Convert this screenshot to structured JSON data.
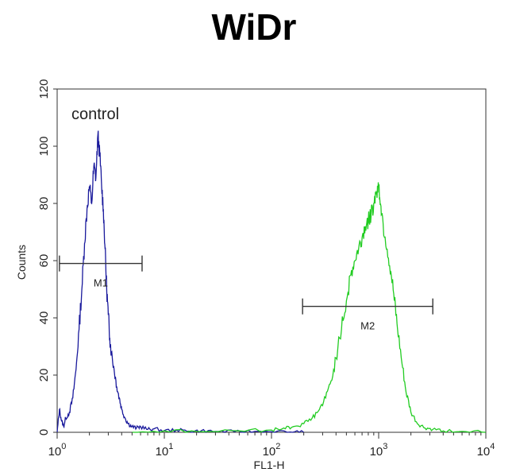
{
  "chart_data": {
    "type": "line",
    "title": "WiDr",
    "xlabel": "FL1-H",
    "ylabel": "Counts",
    "x_scale": "log",
    "xlim": [
      1,
      10000
    ],
    "ylim": [
      0,
      120
    ],
    "x_ticks": [
      {
        "value": 1,
        "base": "10",
        "exp": "0"
      },
      {
        "value": 10,
        "base": "10",
        "exp": "1"
      },
      {
        "value": 100,
        "base": "10",
        "exp": "2"
      },
      {
        "value": 1000,
        "base": "10",
        "exp": "3"
      },
      {
        "value": 10000,
        "base": "10",
        "exp": "4"
      }
    ],
    "y_ticks": [
      "0",
      "20",
      "40",
      "60",
      "80",
      "100",
      "120"
    ],
    "annotation": "control",
    "gates": [
      {
        "name": "M1",
        "x_start": 1.05,
        "x_end": 6.2,
        "y": 59
      },
      {
        "name": "M2",
        "x_start": 195,
        "x_end": 3200,
        "y": 44
      }
    ],
    "series": [
      {
        "color": "#1a1a9c",
        "x": [
          1.0,
          1.05,
          1.1,
          1.15,
          1.2,
          1.3,
          1.4,
          1.5,
          1.6,
          1.7,
          1.8,
          1.9,
          2.0,
          2.1,
          2.2,
          2.3,
          2.4,
          2.5,
          2.6,
          2.7,
          2.8,
          2.9,
          3.0,
          3.1,
          3.2,
          3.4,
          3.6,
          3.8,
          4.0,
          4.3,
          4.6,
          5.0,
          5.5,
          6.0,
          7.0,
          8.0,
          10,
          13,
          17,
          22,
          30,
          45,
          70,
          100,
          150,
          200
        ],
        "y": [
          0,
          8,
          4,
          2,
          5,
          7,
          12,
          22,
          36,
          50,
          66,
          78,
          86,
          80,
          93,
          89,
          104,
          97,
          86,
          78,
          64,
          50,
          41,
          33,
          28,
          22,
          16,
          12,
          8,
          5,
          3,
          2,
          1.5,
          2,
          1,
          1.2,
          0.6,
          0.8,
          0.4,
          0.5,
          0.3,
          0.2,
          0.3,
          0.2,
          0.1,
          0
        ]
      },
      {
        "color": "#22cc22",
        "x": [
          5,
          10,
          20,
          50,
          100,
          130,
          160,
          200,
          240,
          280,
          320,
          360,
          400,
          450,
          500,
          550,
          600,
          650,
          700,
          750,
          800,
          850,
          900,
          950,
          1000,
          1050,
          1100,
          1200,
          1300,
          1400,
          1500,
          1650,
          1800,
          2000,
          2300,
          2700,
          3200,
          4000,
          6000,
          10000
        ],
        "y": [
          0,
          0.5,
          0.3,
          0.5,
          0.8,
          1.5,
          2,
          3,
          5,
          8,
          12,
          18,
          26,
          36,
          46,
          55,
          60,
          64,
          68,
          72,
          74,
          76,
          80,
          84,
          86,
          79,
          73,
          64,
          56,
          46,
          36,
          24,
          14,
          7,
          3,
          1.5,
          1,
          0.5,
          0.3,
          0
        ]
      }
    ]
  }
}
